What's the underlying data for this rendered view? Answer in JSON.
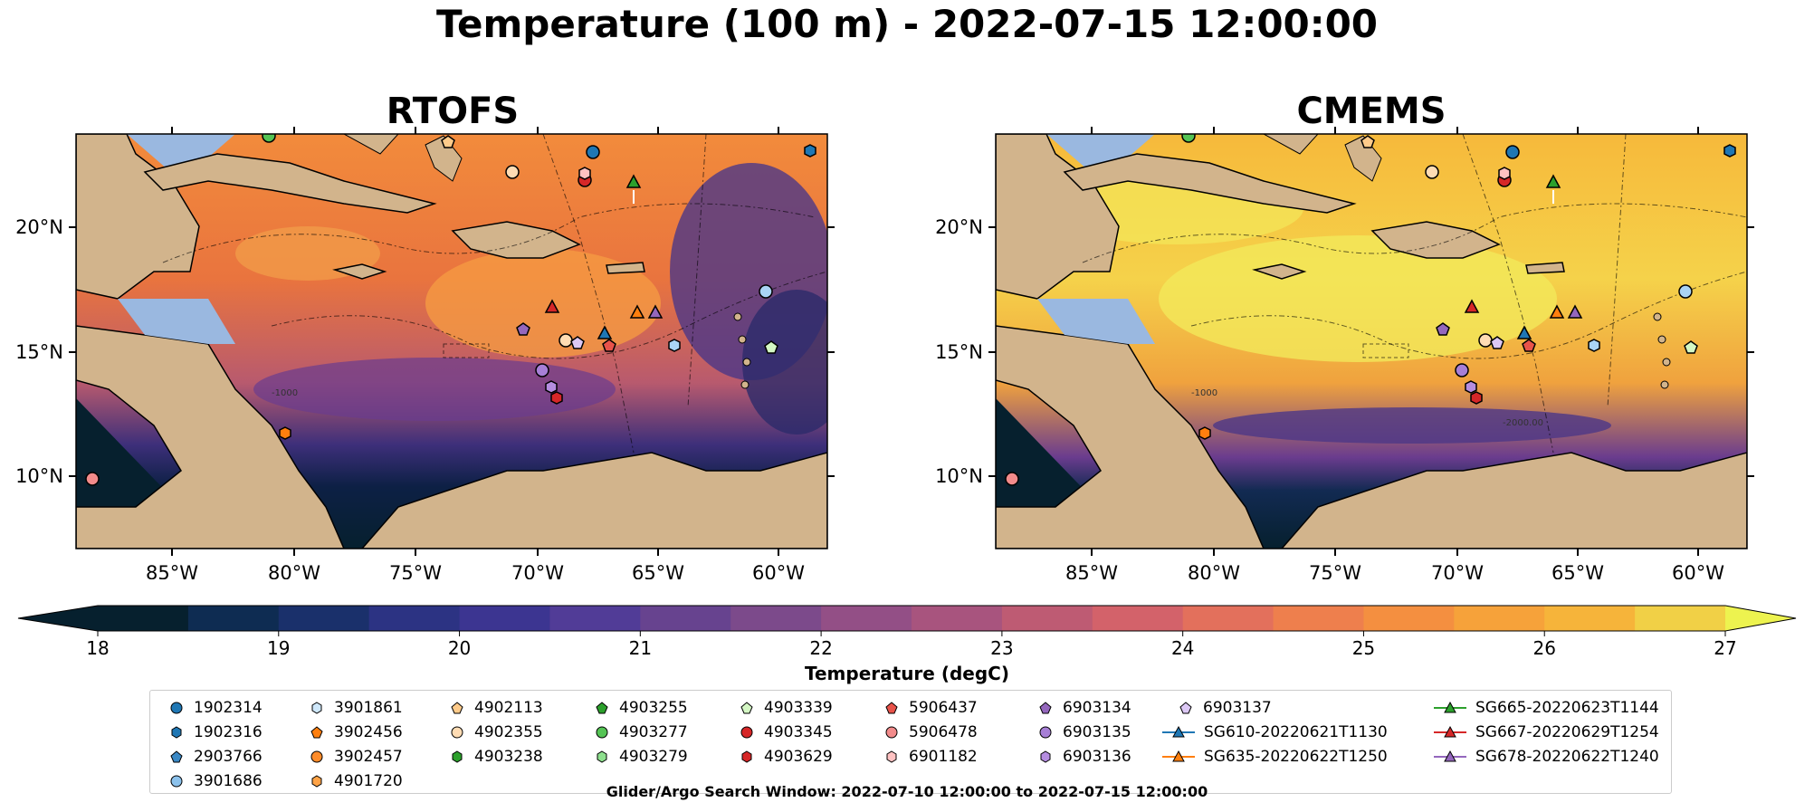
{
  "title": "Temperature (100 m) - 2022-07-15 12:00:00",
  "panels": [
    {
      "title": "RTOFS",
      "palette": "rtofs"
    },
    {
      "title": "CMEMS",
      "palette": "cmems"
    }
  ],
  "axes": {
    "lon_ticks": [
      "85°W",
      "80°W",
      "75°W",
      "70°W",
      "65°W",
      "60°W"
    ],
    "lat_ticks": [
      "20°N",
      "15°N",
      "10°N"
    ],
    "contour_labels": [
      "-1000",
      "-2000.00"
    ]
  },
  "colorbar": {
    "label": "Temperature (degC)",
    "ticks": [
      "18",
      "19",
      "20",
      "21",
      "22",
      "23",
      "24",
      "25",
      "26",
      "27"
    ],
    "min": 18,
    "max": 27,
    "step": 0.5
  },
  "legend": {
    "col1": [
      "1902314",
      "1902316",
      "2903766",
      "3901686"
    ],
    "col2": [
      "3901861",
      "3902456",
      "3902457",
      "4901720"
    ],
    "col3": [
      "4902113",
      "4902355",
      "4903238"
    ],
    "col4": [
      "4903255",
      "4903277",
      "4903279"
    ],
    "col5": [
      "4903339",
      "4903345",
      "4903629"
    ],
    "col6": [
      "5906437",
      "5906478",
      "6901182"
    ],
    "col7": [
      "6903134",
      "6903135",
      "6903136"
    ],
    "col8": [
      "6903137",
      "SG610-20220621T1130",
      "SG635-20220622T1250"
    ],
    "col9": [
      "SG665-20220623T1144",
      "SG667-20220629T1254",
      "SG678-20220622T1240"
    ]
  },
  "footnote": "Glider/Argo Search Window: 2022-07-10 12:00:00 to 2022-07-15 12:00:00",
  "colors": {
    "land": "#d2b48c",
    "shallow_water": "#9ab8e0",
    "blue": "#1f77b4",
    "orange": "#ff7f0e",
    "green": "#2ca02c",
    "red": "#d62728",
    "purple": "#9467bd"
  }
}
